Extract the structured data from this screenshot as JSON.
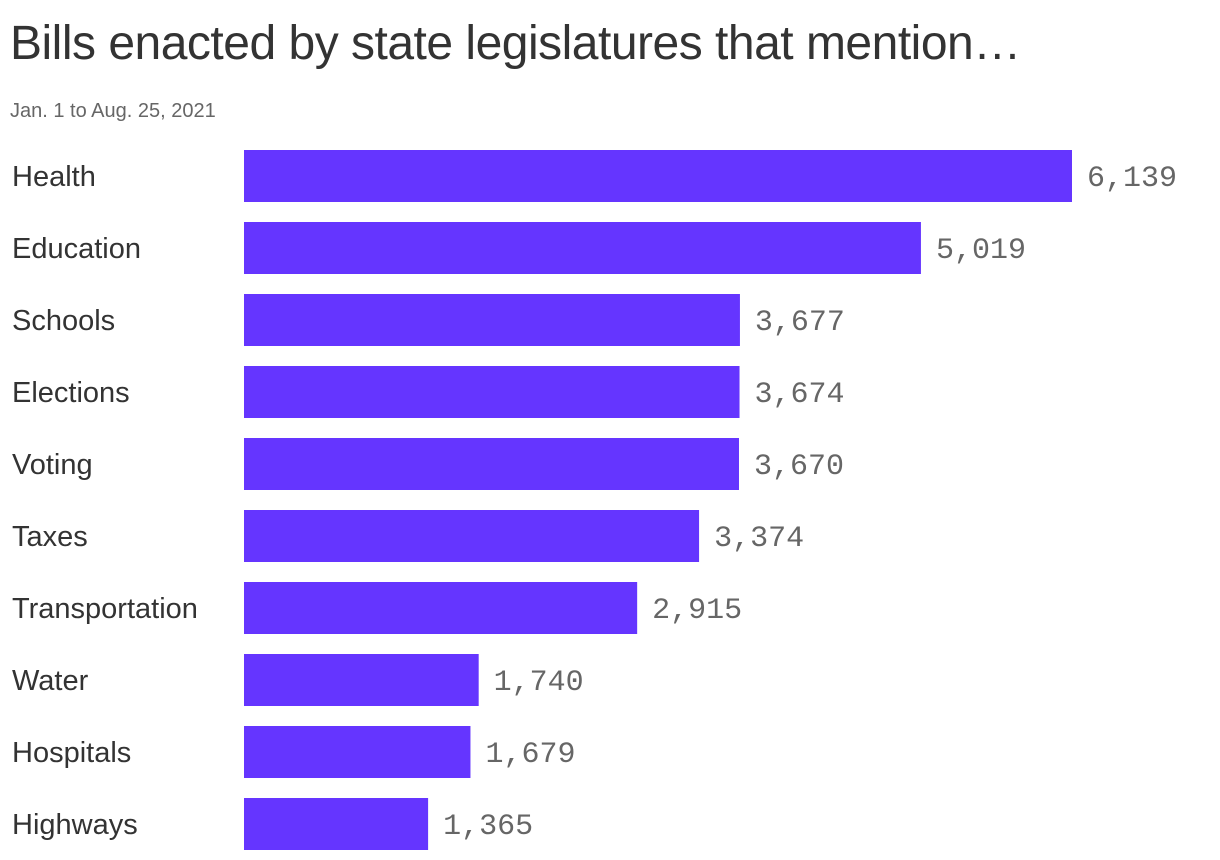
{
  "header": {
    "title": "Bills enacted by state legislatures that mention…",
    "subtitle": "Jan. 1 to Aug. 25, 2021"
  },
  "chart_data": {
    "type": "bar",
    "orientation": "horizontal",
    "title": "Bills enacted by state legislatures that mention…",
    "subtitle": "Jan. 1 to Aug. 25, 2021",
    "categories": [
      "Health",
      "Education",
      "Schools",
      "Elections",
      "Voting",
      "Taxes",
      "Transportation",
      "Water",
      "Hospitals",
      "Highways"
    ],
    "values": [
      6139,
      5019,
      3677,
      3674,
      3670,
      3374,
      2915,
      1740,
      1679,
      1365
    ],
    "value_labels": [
      "6,139",
      "5,019",
      "3,677",
      "3,674",
      "3,670",
      "3,374",
      "2,915",
      "1,740",
      "1,679",
      "1,365"
    ],
    "bar_color": "#6535ff",
    "xlabel": "",
    "ylabel": "",
    "xlim": [
      0,
      6139
    ],
    "grid": false,
    "legend": "none"
  }
}
